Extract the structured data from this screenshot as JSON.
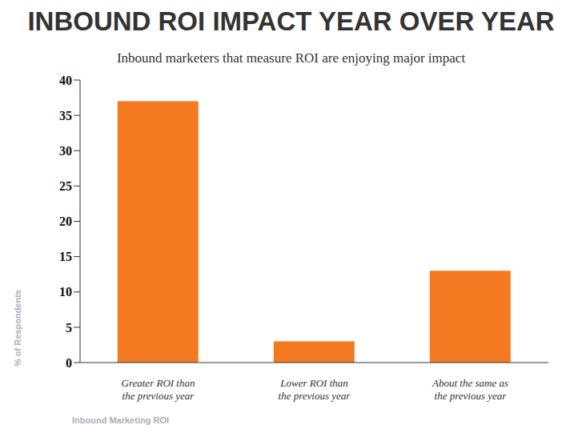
{
  "chart_data": {
    "type": "bar",
    "title": "INBOUND ROI IMPACT YEAR OVER YEAR",
    "subtitle": "Inbound marketers that measure ROI are enjoying major impact",
    "ylabel": "% of Respondents",
    "note": "Inbound Marketing ROI",
    "categories": [
      "Greater ROI than the previous year",
      "Lower ROI than the previous year",
      "About the same as the previous year"
    ],
    "values": [
      37,
      3,
      13
    ],
    "color": "#f47920",
    "ylim": [
      0,
      40
    ],
    "yticks": [
      0,
      5,
      10,
      15,
      20,
      25,
      30,
      35,
      40
    ],
    "grid": false,
    "data_labels": false
  }
}
